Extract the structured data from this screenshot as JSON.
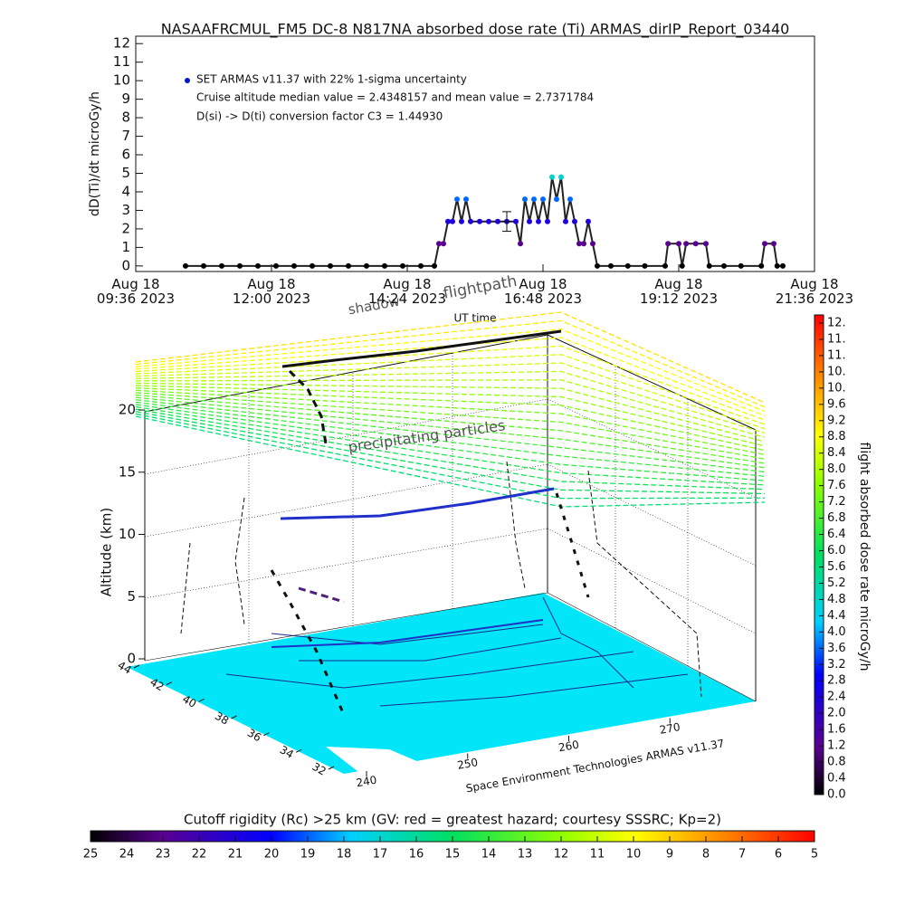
{
  "chart_data": [
    {
      "type": "line",
      "title": "NASAAFRCMUL_FM5 DC-8   N817NA absorbed dose rate (Ti) ARMAS_dirIP_Report_03440",
      "xlabel": "UT time",
      "ylabel": "dD(Ti)/dt microGy/h",
      "xlim": [
        9.6,
        21.6
      ],
      "xticks": [
        {
          "value": 9.6,
          "label": "Aug 18\n09:36 2023"
        },
        {
          "value": 12.0,
          "label": "Aug 18\n12:00 2023"
        },
        {
          "value": 14.4,
          "label": "Aug 18\n14:24 2023"
        },
        {
          "value": 16.8,
          "label": "Aug 18\n16:48 2023"
        },
        {
          "value": 19.2,
          "label": "Aug 18\n19:12 2023"
        },
        {
          "value": 21.6,
          "label": "Aug 18\n21:36 2023"
        }
      ],
      "ylim": [
        -0.3,
        12.4
      ],
      "yticks": [
        0,
        1,
        2,
        3,
        4,
        5,
        6,
        7,
        8,
        9,
        10,
        11,
        12
      ],
      "series": [
        {
          "name": "SET ARMAS v11.37 with 22% 1-sigma uncertainty",
          "color": "#0018c8",
          "x": [
            10.48,
            10.8,
            11.12,
            11.44,
            11.76,
            12.08,
            12.4,
            12.72,
            13.04,
            13.36,
            13.68,
            14.0,
            14.32,
            14.64,
            14.88,
            14.96,
            15.04,
            15.12,
            15.2,
            15.28,
            15.36,
            15.44,
            15.52,
            15.68,
            15.84,
            16.0,
            16.16,
            16.32,
            16.4,
            16.48,
            16.56,
            16.64,
            16.72,
            16.8,
            16.88,
            16.96,
            17.04,
            17.12,
            17.2,
            17.28,
            17.36,
            17.44,
            17.52,
            17.6,
            17.68,
            17.76,
            18.0,
            18.3,
            18.6,
            18.96,
            19.01,
            19.2,
            19.26,
            19.33,
            19.5,
            19.68,
            19.74,
            20.0,
            20.3,
            20.66,
            20.72,
            20.88,
            20.94,
            21.04
          ],
          "values": [
            0,
            0,
            0,
            0,
            0,
            0,
            0,
            0,
            0,
            0,
            0,
            0,
            0,
            0,
            0,
            1.2,
            1.2,
            2.4,
            2.4,
            3.6,
            2.4,
            3.6,
            2.4,
            2.4,
            2.4,
            2.4,
            2.4,
            2.4,
            1.2,
            3.6,
            2.4,
            3.6,
            2.4,
            3.6,
            2.4,
            4.8,
            3.6,
            4.8,
            2.4,
            3.6,
            2.4,
            1.2,
            1.2,
            2.4,
            1.2,
            0,
            0,
            0,
            0,
            0,
            1.2,
            1.2,
            0,
            1.2,
            1.2,
            1.2,
            0,
            0,
            0,
            0,
            1.2,
            1.2,
            0,
            0
          ]
        }
      ],
      "error_bar": {
        "x": 16.16,
        "value": 2.4,
        "error": 0.53
      },
      "annotations": [
        "Cruise altitude median value = 2.4348157 and mean value = 2.7371784",
        "D(si) -> D(ti) conversion factor C3 = 1.44930"
      ]
    },
    {
      "type": "surface3d",
      "zlabel": "Altitude (km)",
      "zlim": [
        0,
        20
      ],
      "zticks": [
        0,
        5,
        10,
        15,
        20
      ],
      "ylim": [
        32,
        44
      ],
      "yticks": [
        32,
        34,
        36,
        38,
        40,
        42,
        44
      ],
      "xlim": [
        240,
        280
      ],
      "xticks": [
        240,
        250,
        260,
        270
      ],
      "annotations": [
        "precipitating particles",
        "flightpath",
        "shadow"
      ],
      "credit": "Space Environment Technologies ARMAS v11.37"
    },
    {
      "type": "colorbar",
      "label": "flight absorbed dose rate microGy/h",
      "clim": [
        0,
        11.8
      ],
      "ticks": [
        {
          "value": 0,
          "label": "0.0"
        },
        0.4,
        0.8,
        1.2,
        1.6,
        {
          "value": 2,
          "label": "2.0"
        },
        2.4,
        2.8,
        3.2,
        3.6,
        {
          "value": 4,
          "label": "4.0"
        },
        4.4,
        4.8,
        5.2,
        5.6,
        {
          "value": 6,
          "label": "6.0"
        },
        6.4,
        6.8,
        7.2,
        7.6,
        {
          "value": 8,
          "label": "8.0"
        },
        8.4,
        8.8,
        9.2,
        9.6,
        {
          "value": 10,
          "label": "10."
        },
        {
          "value": 10.4,
          "label": "10."
        },
        {
          "value": 10.8,
          "label": "11."
        },
        {
          "value": 11.2,
          "label": "11."
        },
        {
          "value": 11.6,
          "label": "12."
        }
      ],
      "colorscale": [
        [
          0,
          "#000000"
        ],
        [
          0.1,
          "#5a0090"
        ],
        [
          0.25,
          "#0000ff"
        ],
        [
          0.36,
          "#00d0ff"
        ],
        [
          0.5,
          "#00e060"
        ],
        [
          0.65,
          "#90ff00"
        ],
        [
          0.75,
          "#ffff00"
        ],
        [
          0.88,
          "#ff8000"
        ],
        [
          1,
          "#ff0000"
        ]
      ]
    },
    {
      "type": "colorbar",
      "title": "Cutoff rigidity (Rc) >25 km (GV: red = greatest hazard; courtesy SSSRC; Kp=2)",
      "clim": [
        25,
        5
      ],
      "ticks": [
        25,
        24,
        23,
        22,
        21,
        20,
        19,
        18,
        17,
        16,
        15,
        14,
        13,
        12,
        11,
        10,
        9,
        8,
        7,
        6,
        5
      ],
      "colorscale": [
        [
          0,
          "#000000"
        ],
        [
          0.1,
          "#5a0090"
        ],
        [
          0.25,
          "#0000ff"
        ],
        [
          0.36,
          "#00d0ff"
        ],
        [
          0.5,
          "#00e060"
        ],
        [
          0.65,
          "#90ff00"
        ],
        [
          0.75,
          "#ffff00"
        ],
        [
          0.88,
          "#ff8000"
        ],
        [
          1,
          "#ff0000"
        ]
      ]
    }
  ]
}
